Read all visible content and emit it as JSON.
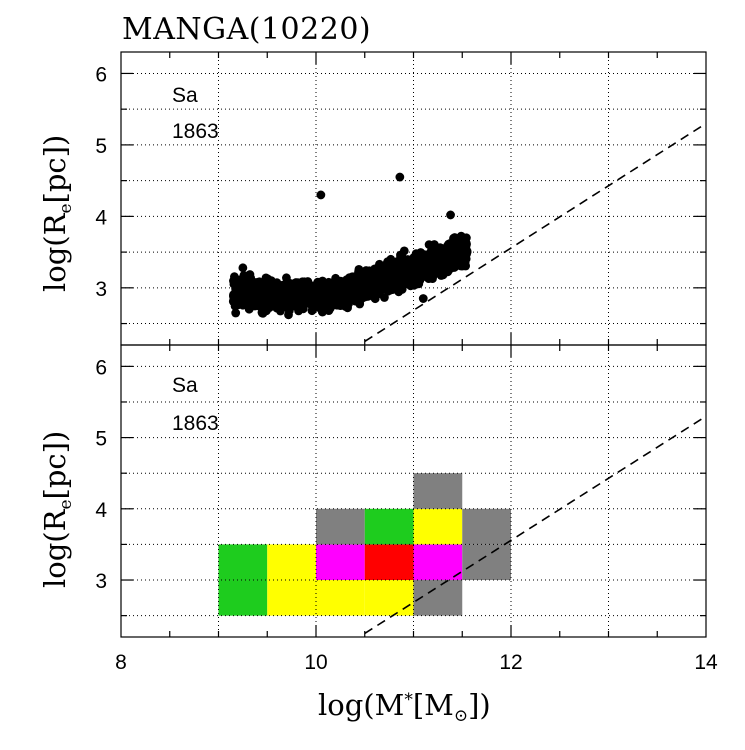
{
  "title": "MANGA(10220)",
  "colors": {
    "grid": "#000000",
    "points": "#000000",
    "gray": "#808080",
    "green": "#1ecc1e",
    "yellow": "#ffff00",
    "magenta": "#ff00ff",
    "red": "#ff0000"
  },
  "axis_text": {
    "ylabel_prefix": "log(R",
    "ylabel_sub": "e",
    "ylabel_suffix": "[pc])",
    "xlabel_prefix": "log(M",
    "xlabel_sup": "*",
    "xlabel_mid": "[M",
    "xlabel_sub": "⊙",
    "xlabel_suffix": "])"
  },
  "chart_data": [
    {
      "type": "scatter",
      "panel": "top",
      "xlim": [
        8,
        14
      ],
      "ylim": [
        2.2,
        6.3
      ],
      "xlabel": "",
      "ylabel": "log(Re[pc])",
      "y_ticks": [
        "3",
        "4",
        "5",
        "6"
      ],
      "annotation_type": "Sa",
      "annotation_count": "1863",
      "grid": true,
      "reference_line": {
        "x": [
          10.5,
          14
        ],
        "y": [
          2.25,
          5.3
        ],
        "style": "dashed"
      },
      "points_summary": "1863 galaxies; dense cloud from log M* 9.0 to 11.6, log Re 2.6 to 4.0, rising with mass",
      "outliers": [
        {
          "x": 9.25,
          "y": 3.28
        },
        {
          "x": 10.05,
          "y": 4.3
        },
        {
          "x": 10.86,
          "y": 4.55
        },
        {
          "x": 11.38,
          "y": 4.02
        },
        {
          "x": 11.1,
          "y": 2.85
        }
      ]
    },
    {
      "type": "heatmap",
      "panel": "bottom",
      "xlim": [
        8,
        14
      ],
      "ylim": [
        2.2,
        6.3
      ],
      "xlabel": "log(M*[M⊙])",
      "ylabel": "log(Re[pc])",
      "x_ticks": [
        "8",
        "10",
        "12",
        "14"
      ],
      "y_ticks": [
        "3",
        "4",
        "5",
        "6"
      ],
      "annotation_type": "Sa",
      "annotation_count": "1863",
      "grid": true,
      "bin_width_x": 0.5,
      "bin_height_y": 0.5,
      "reference_line": {
        "x": [
          10.5,
          14
        ],
        "y": [
          2.25,
          5.3
        ],
        "style": "dashed"
      },
      "cells": [
        {
          "x": 9.0,
          "y": 2.5,
          "color": "green"
        },
        {
          "x": 9.0,
          "y": 3.0,
          "color": "green"
        },
        {
          "x": 9.5,
          "y": 2.5,
          "color": "yellow"
        },
        {
          "x": 9.5,
          "y": 3.0,
          "color": "yellow"
        },
        {
          "x": 10.0,
          "y": 2.5,
          "color": "yellow"
        },
        {
          "x": 10.0,
          "y": 3.0,
          "color": "magenta"
        },
        {
          "x": 10.0,
          "y": 3.5,
          "color": "gray"
        },
        {
          "x": 10.5,
          "y": 2.5,
          "color": "yellow"
        },
        {
          "x": 10.5,
          "y": 3.0,
          "color": "red"
        },
        {
          "x": 10.5,
          "y": 3.5,
          "color": "green"
        },
        {
          "x": 11.0,
          "y": 2.5,
          "color": "gray"
        },
        {
          "x": 11.0,
          "y": 3.0,
          "color": "magenta"
        },
        {
          "x": 11.0,
          "y": 3.5,
          "color": "yellow"
        },
        {
          "x": 11.0,
          "y": 4.0,
          "color": "gray"
        },
        {
          "x": 11.5,
          "y": 3.0,
          "color": "gray"
        },
        {
          "x": 11.5,
          "y": 3.5,
          "color": "gray"
        }
      ]
    }
  ]
}
